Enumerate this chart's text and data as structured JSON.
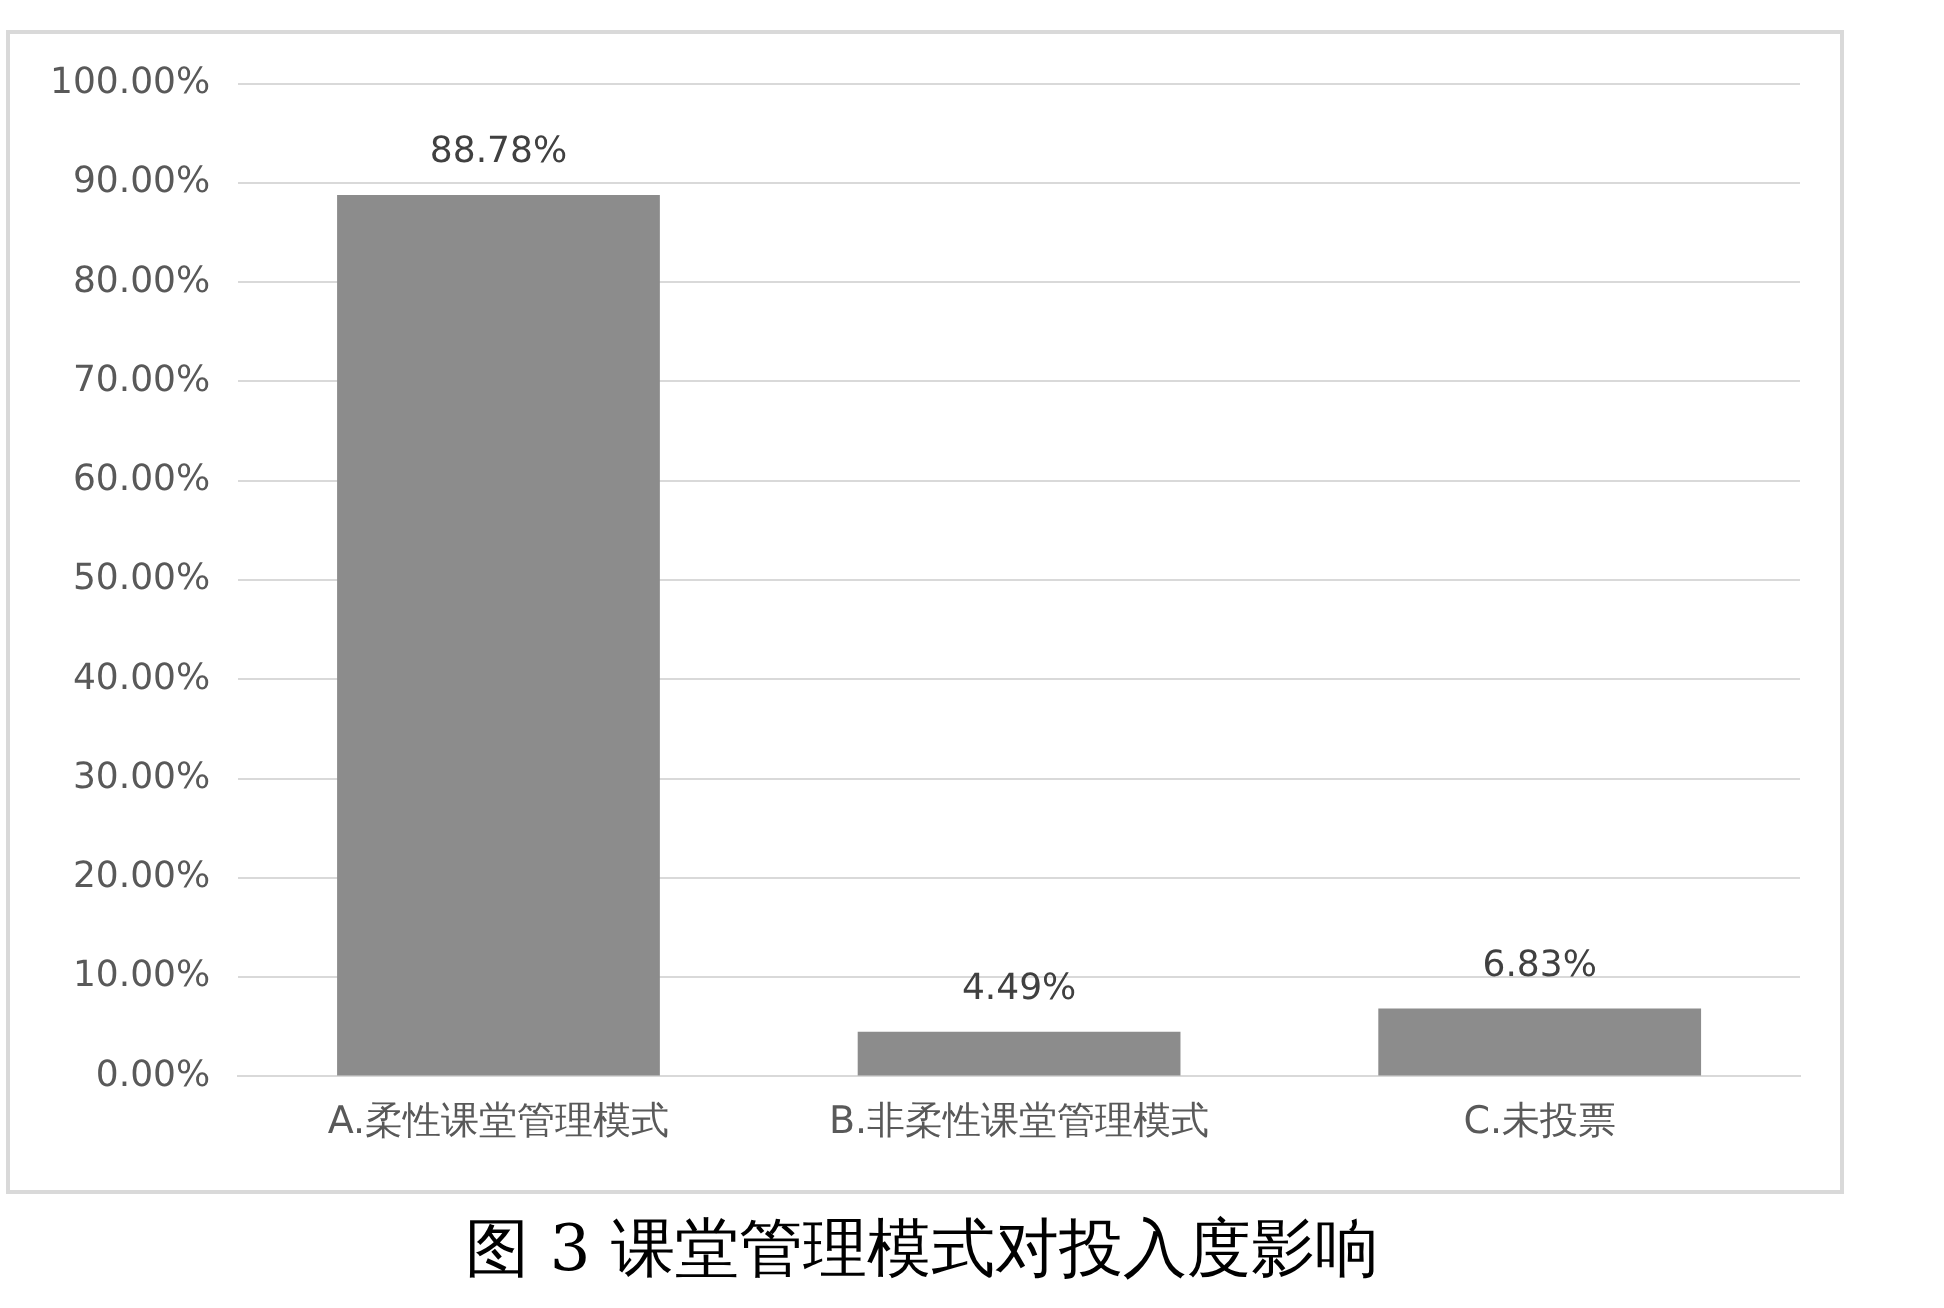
{
  "chart_data": {
    "type": "bar",
    "title": "图 3 课堂管理模式对投入度影响",
    "categories": [
      "A.柔性课堂管理模式",
      "B.非柔性课堂管理模式",
      "C.未投票"
    ],
    "values": [
      88.78,
      4.49,
      6.83
    ],
    "color": "#8c8c8c",
    "value_labels": [
      "88.78%",
      "4.49%",
      "6.83%"
    ],
    "ylim": [
      0,
      100
    ],
    "yticks": [
      {
        "value": 0,
        "label": "0.00%"
      },
      {
        "value": 10,
        "label": "10.00%"
      },
      {
        "value": 20,
        "label": "20.00%"
      },
      {
        "value": 30,
        "label": "30.00%"
      },
      {
        "value": 40,
        "label": "40.00%"
      },
      {
        "value": 50,
        "label": "50.00%"
      },
      {
        "value": 60,
        "label": "60.00%"
      },
      {
        "value": 70,
        "label": "70.00%"
      },
      {
        "value": 80,
        "label": "80.00%"
      },
      {
        "value": 90,
        "label": "90.00%"
      },
      {
        "value": 100,
        "label": "100.00%"
      }
    ],
    "grid": "y",
    "legend": false
  }
}
